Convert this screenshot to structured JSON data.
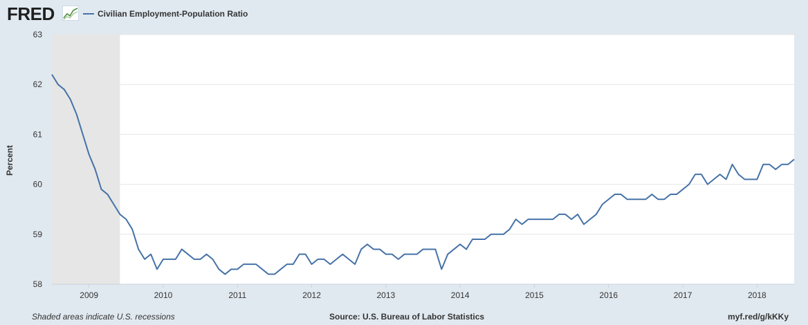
{
  "header": {
    "logo_text": "FRED",
    "logo_icon": "chart-line-icon"
  },
  "legend": {
    "label": "Civilian Employment-Population Ratio",
    "color": "#4572a7"
  },
  "footer": {
    "left": "Shaded areas indicate U.S. recessions",
    "center": "Source: U.S. Bureau of Labor Statistics",
    "right": "myf.red/g/kKKy"
  },
  "chart_data": {
    "type": "line",
    "title": "",
    "xlabel": "",
    "ylabel": "Percent",
    "ylim": [
      58,
      63
    ],
    "xlim": [
      "2008-07",
      "2018-07"
    ],
    "y_ticks": [
      "58",
      "59",
      "60",
      "61",
      "62",
      "63"
    ],
    "x_ticks": [
      "2009",
      "2010",
      "2011",
      "2012",
      "2013",
      "2014",
      "2015",
      "2016",
      "2017",
      "2018"
    ],
    "grid": true,
    "legend_position": "top-left",
    "recessions": [
      {
        "start": "2008-07",
        "end": "2009-06"
      }
    ],
    "colors": {
      "line": "#4572a7",
      "recession": "#e6e6e6",
      "grid": "#e6e6e6"
    },
    "series": [
      {
        "name": "Civilian Employment-Population Ratio",
        "start": "2008-07",
        "frequency": "monthly",
        "values": [
          62.2,
          62.0,
          61.9,
          61.7,
          61.4,
          61.0,
          60.6,
          60.3,
          59.9,
          59.8,
          59.6,
          59.4,
          59.3,
          59.1,
          58.7,
          58.5,
          58.6,
          58.3,
          58.5,
          58.5,
          58.5,
          58.7,
          58.6,
          58.5,
          58.5,
          58.6,
          58.5,
          58.3,
          58.2,
          58.3,
          58.3,
          58.4,
          58.4,
          58.4,
          58.3,
          58.2,
          58.2,
          58.3,
          58.4,
          58.4,
          58.6,
          58.6,
          58.4,
          58.5,
          58.5,
          58.4,
          58.5,
          58.6,
          58.5,
          58.4,
          58.7,
          58.8,
          58.7,
          58.7,
          58.6,
          58.6,
          58.5,
          58.6,
          58.6,
          58.6,
          58.7,
          58.7,
          58.7,
          58.3,
          58.6,
          58.7,
          58.8,
          58.7,
          58.9,
          58.9,
          58.9,
          59.0,
          59.0,
          59.0,
          59.1,
          59.3,
          59.2,
          59.3,
          59.3,
          59.3,
          59.3,
          59.3,
          59.4,
          59.4,
          59.3,
          59.4,
          59.2,
          59.3,
          59.4,
          59.6,
          59.7,
          59.8,
          59.8,
          59.7,
          59.7,
          59.7,
          59.7,
          59.8,
          59.7,
          59.7,
          59.8,
          59.8,
          59.9,
          60.0,
          60.2,
          60.2,
          60.0,
          60.1,
          60.2,
          60.1,
          60.4,
          60.2,
          60.1,
          60.1,
          60.1,
          60.4,
          60.4,
          60.3,
          60.4,
          60.4,
          60.5
        ]
      }
    ]
  }
}
